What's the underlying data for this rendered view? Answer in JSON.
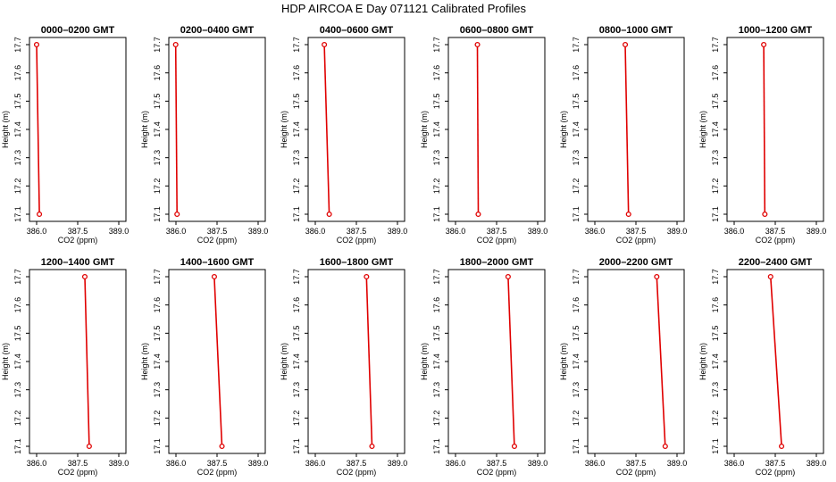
{
  "title": "HDP AIRCOA E  Day 071121  Calibrated Profiles",
  "colors": {
    "series": "#e00000",
    "axes": "#000000",
    "background": "#ffffff"
  },
  "chart_data": [
    {
      "type": "line",
      "title": "0000–0200 GMT",
      "xlabel": "CO2 (ppm)",
      "ylabel": "Height (m)",
      "xlim": [
        386.0,
        389.0
      ],
      "ylim": [
        17.1,
        17.7
      ],
      "xticks": [
        "386.0",
        "387.5",
        "389.0"
      ],
      "yticks": [
        "17.1",
        "17.2",
        "17.3",
        "17.4",
        "17.5",
        "17.6",
        "17.7"
      ],
      "x": [
        386.0,
        386.1
      ],
      "y": [
        17.7,
        17.1
      ],
      "grid": false
    },
    {
      "type": "line",
      "title": "0200–0400 GMT",
      "xlabel": "CO2 (ppm)",
      "ylabel": "Height (m)",
      "xlim": [
        386.0,
        389.0
      ],
      "ylim": [
        17.1,
        17.7
      ],
      "xticks": [
        "386.0",
        "387.5",
        "389.0"
      ],
      "yticks": [
        "17.1",
        "17.2",
        "17.3",
        "17.4",
        "17.5",
        "17.6",
        "17.7"
      ],
      "x": [
        385.99,
        386.04
      ],
      "y": [
        17.7,
        17.1
      ],
      "grid": false
    },
    {
      "type": "line",
      "title": "0400–0600 GMT",
      "xlabel": "CO2 (ppm)",
      "ylabel": "Height (m)",
      "xlim": [
        386.0,
        389.0
      ],
      "ylim": [
        17.1,
        17.7
      ],
      "xticks": [
        "386.0",
        "387.5",
        "389.0"
      ],
      "yticks": [
        "17.1",
        "17.2",
        "17.3",
        "17.4",
        "17.5",
        "17.6",
        "17.7"
      ],
      "x": [
        386.33,
        386.51
      ],
      "y": [
        17.7,
        17.1
      ],
      "grid": false
    },
    {
      "type": "line",
      "title": "0600–0800 GMT",
      "xlabel": "CO2 (ppm)",
      "ylabel": "Height (m)",
      "xlim": [
        386.0,
        389.0
      ],
      "ylim": [
        17.1,
        17.7
      ],
      "xticks": [
        "386.0",
        "387.5",
        "389.0"
      ],
      "yticks": [
        "17.1",
        "17.2",
        "17.3",
        "17.4",
        "17.5",
        "17.6",
        "17.7"
      ],
      "x": [
        386.8,
        386.83
      ],
      "y": [
        17.7,
        17.1
      ],
      "grid": false
    },
    {
      "type": "line",
      "title": "0800–1000 GMT",
      "xlabel": "CO2 (ppm)",
      "ylabel": "Height (m)",
      "xlim": [
        386.0,
        389.0
      ],
      "ylim": [
        17.1,
        17.7
      ],
      "xticks": [
        "386.0",
        "387.5",
        "389.0"
      ],
      "yticks": [
        "17.1",
        "17.2",
        "17.3",
        "17.4",
        "17.5",
        "17.6",
        "17.7"
      ],
      "x": [
        387.11,
        387.23
      ],
      "y": [
        17.7,
        17.1
      ],
      "grid": false
    },
    {
      "type": "line",
      "title": "1000–1200 GMT",
      "xlabel": "CO2 (ppm)",
      "ylabel": "Height (m)",
      "xlim": [
        386.0,
        389.0
      ],
      "ylim": [
        17.1,
        17.7
      ],
      "xticks": [
        "386.0",
        "387.5",
        "389.0"
      ],
      "yticks": [
        "17.1",
        "17.2",
        "17.3",
        "17.4",
        "17.5",
        "17.6",
        "17.7"
      ],
      "x": [
        387.08,
        387.12
      ],
      "y": [
        17.7,
        17.1
      ],
      "grid": false
    },
    {
      "type": "line",
      "title": "1200–1400 GMT",
      "xlabel": "CO2 (ppm)",
      "ylabel": "Height (m)",
      "xlim": [
        386.0,
        389.0
      ],
      "ylim": [
        17.1,
        17.7
      ],
      "xticks": [
        "386.0",
        "387.5",
        "389.0"
      ],
      "yticks": [
        "17.1",
        "17.2",
        "17.3",
        "17.4",
        "17.5",
        "17.6",
        "17.7"
      ],
      "x": [
        387.76,
        387.92
      ],
      "y": [
        17.7,
        17.1
      ],
      "grid": false
    },
    {
      "type": "line",
      "title": "1400–1600 GMT",
      "xlabel": "CO2 (ppm)",
      "ylabel": "Height (m)",
      "xlim": [
        386.0,
        389.0
      ],
      "ylim": [
        17.1,
        17.7
      ],
      "xticks": [
        "386.0",
        "387.5",
        "389.0"
      ],
      "yticks": [
        "17.1",
        "17.2",
        "17.3",
        "17.4",
        "17.5",
        "17.6",
        "17.7"
      ],
      "x": [
        387.4,
        387.68
      ],
      "y": [
        17.7,
        17.1
      ],
      "grid": false
    },
    {
      "type": "line",
      "title": "1600–1800 GMT",
      "xlabel": "CO2 (ppm)",
      "ylabel": "Height (m)",
      "xlim": [
        386.0,
        389.0
      ],
      "ylim": [
        17.1,
        17.7
      ],
      "xticks": [
        "386.0",
        "387.5",
        "389.0"
      ],
      "yticks": [
        "17.1",
        "17.2",
        "17.3",
        "17.4",
        "17.5",
        "17.6",
        "17.7"
      ],
      "x": [
        387.87,
        388.07
      ],
      "y": [
        17.7,
        17.1
      ],
      "grid": false
    },
    {
      "type": "line",
      "title": "1800–2000 GMT",
      "xlabel": "CO2 (ppm)",
      "ylabel": "Height (m)",
      "xlim": [
        386.0,
        389.0
      ],
      "ylim": [
        17.1,
        17.7
      ],
      "xticks": [
        "386.0",
        "387.5",
        "389.0"
      ],
      "yticks": [
        "17.1",
        "17.2",
        "17.3",
        "17.4",
        "17.5",
        "17.6",
        "17.7"
      ],
      "x": [
        387.92,
        388.15
      ],
      "y": [
        17.7,
        17.1
      ],
      "grid": false
    },
    {
      "type": "line",
      "title": "2000–2200 GMT",
      "xlabel": "CO2 (ppm)",
      "ylabel": "Height (m)",
      "xlim": [
        386.0,
        389.0
      ],
      "ylim": [
        17.1,
        17.7
      ],
      "xticks": [
        "386.0",
        "387.5",
        "389.0"
      ],
      "yticks": [
        "17.1",
        "17.2",
        "17.3",
        "17.4",
        "17.5",
        "17.6",
        "17.7"
      ],
      "x": [
        388.26,
        388.57
      ],
      "y": [
        17.7,
        17.1
      ],
      "grid": false
    },
    {
      "type": "line",
      "title": "2200–2400 GMT",
      "xlabel": "CO2 (ppm)",
      "ylabel": "Height (m)",
      "xlim": [
        386.0,
        389.0
      ],
      "ylim": [
        17.1,
        17.7
      ],
      "xticks": [
        "386.0",
        "387.5",
        "389.0"
      ],
      "yticks": [
        "17.1",
        "17.2",
        "17.3",
        "17.4",
        "17.5",
        "17.6",
        "17.7"
      ],
      "x": [
        387.33,
        387.73
      ],
      "y": [
        17.7,
        17.1
      ],
      "grid": false
    }
  ]
}
